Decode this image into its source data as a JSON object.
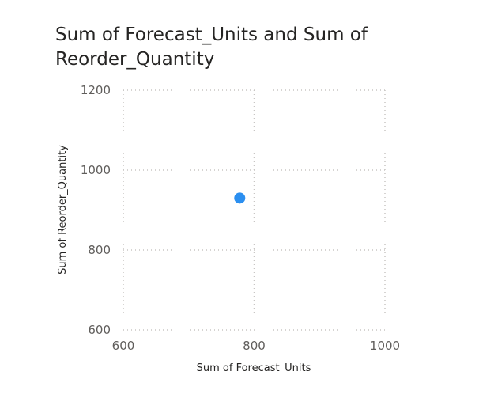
{
  "chart_data": {
    "type": "scatter",
    "title": "Sum of Forecast_Units and Sum of Reorder_Quantity",
    "xlabel": "Sum of Forecast_Units",
    "ylabel": "Sum of Reorder_Quantity",
    "xlim": [
      600,
      1000
    ],
    "ylim": [
      600,
      1200
    ],
    "xticks": [
      600,
      800,
      1000
    ],
    "yticks": [
      600,
      800,
      1000,
      1200
    ],
    "grid": true,
    "points": [
      {
        "x": 778,
        "y": 930
      }
    ],
    "colors": {
      "point": "#2b8ff0",
      "grid": "#c8c6c4"
    }
  }
}
